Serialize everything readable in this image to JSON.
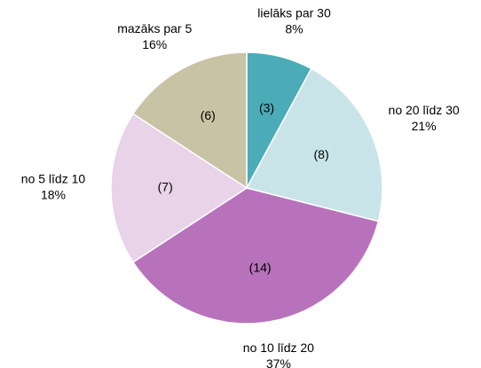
{
  "chart_data": {
    "type": "pie",
    "categories": [
      "lielāks par 30",
      "no 20 līdz 30",
      "no 10 līdz 20",
      "no 5 līdz 10",
      "mazāks par 5"
    ],
    "values": [
      3,
      8,
      14,
      7,
      6
    ],
    "value_labels": [
      "(3)",
      "(8)",
      "(14)",
      "(7)",
      "(6)"
    ],
    "percentages": [
      8,
      21,
      37,
      18,
      16
    ],
    "percentage_labels": [
      "8%",
      "21%",
      "37%",
      "18%",
      "16%"
    ],
    "colors": [
      "#4bacb8",
      "#c9e4e8",
      "#b872bb",
      "#e9d3e9",
      "#c8c3a5"
    ]
  }
}
